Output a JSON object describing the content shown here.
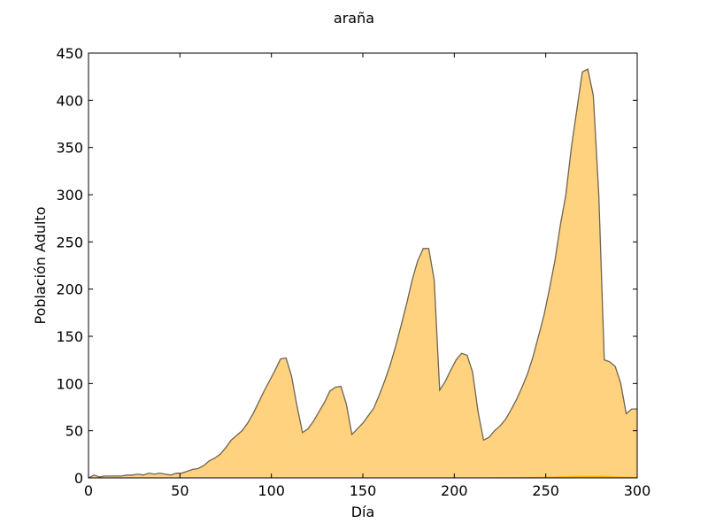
{
  "chart_data": {
    "type": "area",
    "title": "araña",
    "xlabel": "Día",
    "ylabel": "Población Adulto",
    "xlim": [
      0,
      300
    ],
    "ylim": [
      0,
      450
    ],
    "xticks": [
      0,
      50,
      100,
      150,
      200,
      250,
      300
    ],
    "yticks": [
      0,
      50,
      100,
      150,
      200,
      250,
      300,
      350,
      400,
      450
    ],
    "grid": false,
    "colors": {
      "fill": "#ffd280",
      "line": "#6e6450",
      "secondary": "#ffb000"
    },
    "series": [
      {
        "x": [
          0,
          3,
          6,
          9,
          12,
          15,
          18,
          21,
          24,
          27,
          30,
          33,
          36,
          39,
          42,
          45,
          48,
          51,
          54,
          57,
          60,
          63,
          66,
          69,
          72,
          75,
          78,
          81,
          84,
          87,
          90,
          93,
          96,
          99,
          102,
          105,
          108,
          111,
          114,
          117,
          120,
          123,
          126,
          129,
          132,
          135,
          138,
          141,
          144,
          147,
          150,
          153,
          156,
          159,
          162,
          165,
          168,
          171,
          174,
          177,
          180,
          183,
          186,
          189,
          192,
          195,
          198,
          201,
          204,
          207,
          210,
          213,
          216,
          219,
          222,
          225,
          228,
          231,
          234,
          237,
          240,
          243,
          246,
          249,
          252,
          255,
          258,
          261,
          264,
          267,
          270,
          273,
          276,
          279,
          282,
          285,
          288,
          291,
          294,
          297,
          300
        ],
        "y": [
          0,
          3,
          1,
          2,
          2,
          2,
          2,
          3,
          3,
          4,
          3,
          5,
          4,
          5,
          4,
          3,
          5,
          5,
          7,
          9,
          10,
          13,
          18,
          21,
          25,
          32,
          40,
          45,
          50,
          58,
          68,
          80,
          92,
          103,
          114,
          126,
          127,
          108,
          76,
          48,
          52,
          60,
          70,
          80,
          92,
          96,
          97,
          78,
          46,
          52,
          58,
          66,
          74,
          88,
          103,
          120,
          140,
          162,
          185,
          210,
          230,
          243,
          243,
          210,
          93,
          102,
          114,
          125,
          132,
          130,
          112,
          70,
          40,
          43,
          50,
          55,
          62,
          72,
          83,
          96,
          110,
          128,
          150,
          172,
          200,
          230,
          268,
          300,
          350,
          390,
          430,
          433,
          405,
          300,
          125,
          123,
          118,
          100,
          68,
          73,
          73
        ]
      },
      {
        "x": [
          0,
          30,
          60,
          90,
          120,
          150,
          180,
          210,
          240,
          255,
          270,
          280,
          290,
          300
        ],
        "y": [
          0,
          0,
          0,
          0,
          0,
          0,
          0,
          0.3,
          0.8,
          1.5,
          2.2,
          2.2,
          1.5,
          1
        ]
      }
    ]
  }
}
